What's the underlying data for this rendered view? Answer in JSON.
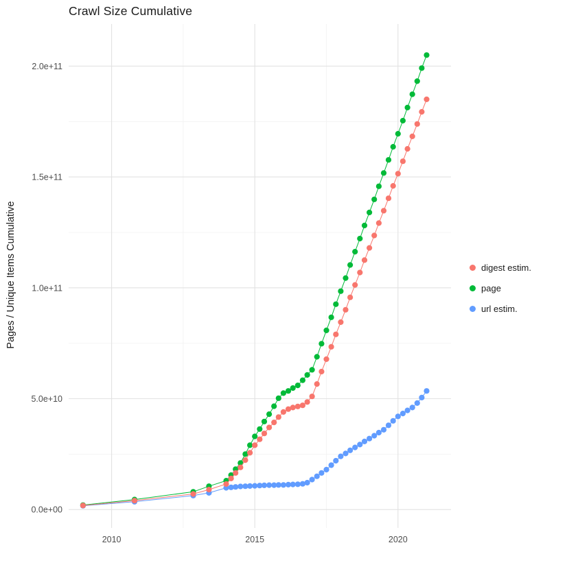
{
  "chart_data": {
    "type": "scatter",
    "title": "Crawl Size Cumulative",
    "xlabel": "",
    "ylabel": "Pages / Unique Items Cumulative",
    "xlim": [
      2008.5,
      2021.85
    ],
    "ylim": [
      -8300000000.0,
      219000000000.0
    ],
    "grid": true,
    "legend_position": "right",
    "x_ticks": [
      {
        "v": 2010,
        "label": "2010"
      },
      {
        "v": 2015,
        "label": "2015"
      },
      {
        "v": 2020,
        "label": "2020"
      }
    ],
    "y_ticks": [
      {
        "v": 0,
        "label": "0.0e+00"
      },
      {
        "v": 50000000000.0,
        "label": "5.0e+10"
      },
      {
        "v": 100000000000.0,
        "label": "1.0e+11"
      },
      {
        "v": 150000000000.0,
        "label": "1.5e+11"
      },
      {
        "v": 200000000000.0,
        "label": "2.0e+11"
      }
    ],
    "x_minor": [
      2012.5,
      2017.5
    ],
    "y_minor": [
      25000000000.0,
      75000000000.0,
      125000000000.0,
      175000000000.0
    ],
    "series": [
      {
        "id": "digest",
        "name": "digest estim.",
        "color": "#F8766D",
        "points": [
          [
            2009.0,
            1800000000.0
          ],
          [
            2010.8,
            4000000000.0
          ],
          [
            2012.85,
            7000000000.0
          ],
          [
            2013.4,
            9000000000.0
          ],
          [
            2014.0,
            11500000000.0
          ],
          [
            2014.17,
            14000000000.0
          ],
          [
            2014.33,
            16500000000.0
          ],
          [
            2014.5,
            19000000000.0
          ],
          [
            2014.67,
            22300000000.0
          ],
          [
            2014.83,
            25600000000.0
          ],
          [
            2015.0,
            29000000000.0
          ],
          [
            2015.17,
            31700000000.0
          ],
          [
            2015.33,
            34300000000.0
          ],
          [
            2015.5,
            37000000000.0
          ],
          [
            2015.67,
            39300000000.0
          ],
          [
            2015.83,
            41700000000.0
          ],
          [
            2016.0,
            44000000000.0
          ],
          [
            2016.17,
            45300000000.0
          ],
          [
            2016.33,
            46000000000.0
          ],
          [
            2016.5,
            46500000000.0
          ],
          [
            2016.67,
            47000000000.0
          ],
          [
            2016.83,
            48500000000.0
          ],
          [
            2017.0,
            51000000000.0
          ],
          [
            2017.17,
            56600000000.0
          ],
          [
            2017.33,
            62200000000.0
          ],
          [
            2017.5,
            67800000000.0
          ],
          [
            2017.67,
            73400000000.0
          ],
          [
            2017.83,
            79000000000.0
          ],
          [
            2018.0,
            84500000000.0
          ],
          [
            2018.17,
            90100000000.0
          ],
          [
            2018.33,
            95700000000.0
          ],
          [
            2018.5,
            101300000000.0
          ],
          [
            2018.67,
            106900000000.0
          ],
          [
            2018.83,
            112500000000.0
          ],
          [
            2019.0,
            118000000000.0
          ],
          [
            2019.17,
            123600000000.0
          ],
          [
            2019.33,
            129200000000.0
          ],
          [
            2019.5,
            134800000000.0
          ],
          [
            2019.67,
            140400000000.0
          ],
          [
            2019.83,
            146000000000.0
          ],
          [
            2020.0,
            151500000000.0
          ],
          [
            2020.17,
            157100000000.0
          ],
          [
            2020.33,
            162700000000.0
          ],
          [
            2020.5,
            168300000000.0
          ],
          [
            2020.67,
            173900000000.0
          ],
          [
            2020.83,
            179400000000.0
          ],
          [
            2021.0,
            185000000000.0
          ]
        ]
      },
      {
        "id": "page",
        "name": "page",
        "color": "#00BA38",
        "points": [
          [
            2009.0,
            2000000000.0
          ],
          [
            2010.8,
            4500000000.0
          ],
          [
            2012.85,
            8000000000.0
          ],
          [
            2013.4,
            10500000000.0
          ],
          [
            2014.0,
            13000000000.0
          ],
          [
            2014.17,
            15500000000.0
          ],
          [
            2014.33,
            18200000000.0
          ],
          [
            2014.5,
            21000000000.0
          ],
          [
            2014.67,
            25000000000.0
          ],
          [
            2014.83,
            29000000000.0
          ],
          [
            2015.0,
            33000000000.0
          ],
          [
            2015.17,
            36300000000.0
          ],
          [
            2015.33,
            39700000000.0
          ],
          [
            2015.5,
            43000000000.0
          ],
          [
            2015.67,
            46600000000.0
          ],
          [
            2015.83,
            50200000000.0
          ],
          [
            2016.0,
            52500000000.0
          ],
          [
            2016.17,
            53500000000.0
          ],
          [
            2016.33,
            54800000000.0
          ],
          [
            2016.5,
            56000000000.0
          ],
          [
            2016.67,
            58300000000.0
          ],
          [
            2016.83,
            60700000000.0
          ],
          [
            2017.0,
            63000000000.0
          ],
          [
            2017.17,
            68900000000.0
          ],
          [
            2017.33,
            74800000000.0
          ],
          [
            2017.5,
            80800000000.0
          ],
          [
            2017.67,
            86700000000.0
          ],
          [
            2017.83,
            92600000000.0
          ],
          [
            2018.0,
            98500000000.0
          ],
          [
            2018.17,
            104400000000.0
          ],
          [
            2018.33,
            110300000000.0
          ],
          [
            2018.5,
            116300000000.0
          ],
          [
            2018.67,
            122200000000.0
          ],
          [
            2018.83,
            128100000000.0
          ],
          [
            2019.0,
            134000000000.0
          ],
          [
            2019.17,
            139900000000.0
          ],
          [
            2019.33,
            145800000000.0
          ],
          [
            2019.5,
            151800000000.0
          ],
          [
            2019.67,
            157700000000.0
          ],
          [
            2019.83,
            163600000000.0
          ],
          [
            2020.0,
            169500000000.0
          ],
          [
            2020.17,
            175400000000.0
          ],
          [
            2020.33,
            181300000000.0
          ],
          [
            2020.5,
            187300000000.0
          ],
          [
            2020.67,
            193200000000.0
          ],
          [
            2020.83,
            199100000000.0
          ],
          [
            2021.0,
            205000000000.0
          ]
        ]
      },
      {
        "id": "url",
        "name": "url estim.",
        "color": "#619CFF",
        "points": [
          [
            2009.0,
            1700000000.0
          ],
          [
            2010.8,
            3500000000.0
          ],
          [
            2012.85,
            6300000000.0
          ],
          [
            2013.4,
            7500000000.0
          ],
          [
            2014.0,
            9800000000.0
          ],
          [
            2014.17,
            10000000000.0
          ],
          [
            2014.33,
            10200000000.0
          ],
          [
            2014.5,
            10400000000.0
          ],
          [
            2014.67,
            10500000000.0
          ],
          [
            2014.83,
            10600000000.0
          ],
          [
            2015.0,
            10700000000.0
          ],
          [
            2015.17,
            10800000000.0
          ],
          [
            2015.33,
            10900000000.0
          ],
          [
            2015.5,
            11000000000.0
          ],
          [
            2015.67,
            11000000000.0
          ],
          [
            2015.83,
            11100000000.0
          ],
          [
            2016.0,
            11100000000.0
          ],
          [
            2016.17,
            11200000000.0
          ],
          [
            2016.33,
            11300000000.0
          ],
          [
            2016.5,
            11400000000.0
          ],
          [
            2016.67,
            11600000000.0
          ],
          [
            2016.83,
            12100000000.0
          ],
          [
            2017.0,
            13500000000.0
          ],
          [
            2017.17,
            15000000000.0
          ],
          [
            2017.33,
            16500000000.0
          ],
          [
            2017.5,
            18000000000.0
          ],
          [
            2017.67,
            20000000000.0
          ],
          [
            2017.83,
            22000000000.0
          ],
          [
            2018.0,
            24000000000.0
          ],
          [
            2018.17,
            25300000000.0
          ],
          [
            2018.33,
            26700000000.0
          ],
          [
            2018.5,
            28000000000.0
          ],
          [
            2018.67,
            29300000000.0
          ],
          [
            2018.83,
            30700000000.0
          ],
          [
            2019.0,
            32000000000.0
          ],
          [
            2019.17,
            33300000000.0
          ],
          [
            2019.33,
            34700000000.0
          ],
          [
            2019.5,
            36000000000.0
          ],
          [
            2019.67,
            38000000000.0
          ],
          [
            2019.83,
            40000000000.0
          ],
          [
            2020.0,
            42000000000.0
          ],
          [
            2020.17,
            43300000000.0
          ],
          [
            2020.33,
            44700000000.0
          ],
          [
            2020.5,
            46000000000.0
          ],
          [
            2020.67,
            48000000000.0
          ],
          [
            2020.83,
            50500000000.0
          ],
          [
            2021.0,
            53500000000.0
          ]
        ]
      }
    ]
  }
}
